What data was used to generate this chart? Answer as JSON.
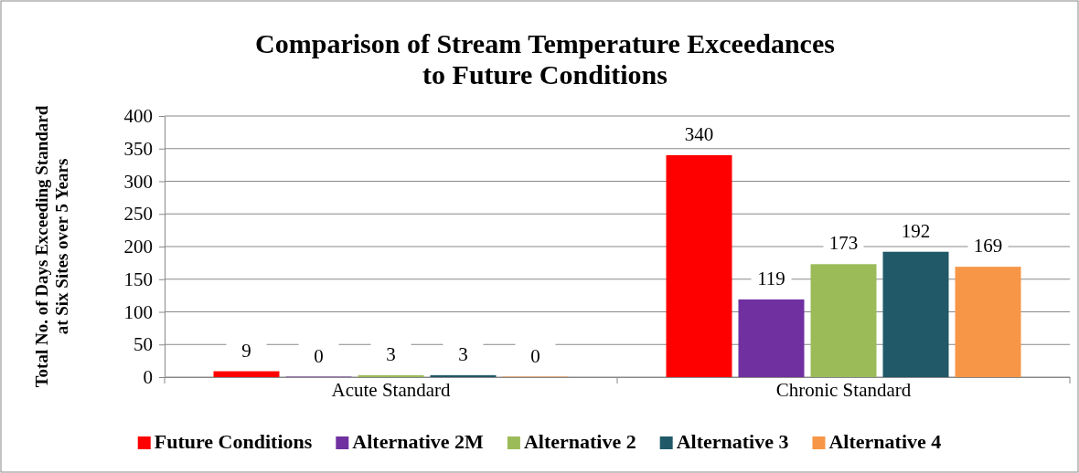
{
  "chart_data": {
    "type": "bar",
    "title": "Comparison of Stream Temperature Exceedances to Future Conditions",
    "ylabel": "Total No. of Days Exceeding Standard at Six Sites over 5 Years",
    "categories": [
      "Acute Standard",
      "Chronic Standard"
    ],
    "series": [
      {
        "name": "Future Conditions",
        "color": "#ff0000",
        "values": [
          9,
          340
        ]
      },
      {
        "name": "Alternative 2M",
        "color": "#7030a0",
        "values": [
          0,
          119
        ]
      },
      {
        "name": "Alternative 2",
        "color": "#9bbb59",
        "values": [
          3,
          173
        ]
      },
      {
        "name": "Alternative 3",
        "color": "#215968",
        "values": [
          3,
          192
        ]
      },
      {
        "name": "Alternative 4",
        "color": "#f79646",
        "values": [
          0,
          169
        ]
      }
    ],
    "ylim": [
      0,
      400
    ],
    "yticks": [
      0,
      50,
      100,
      150,
      200,
      250,
      300,
      350,
      400
    ],
    "grid": "y",
    "legend": "bottom",
    "data_labels": true
  }
}
